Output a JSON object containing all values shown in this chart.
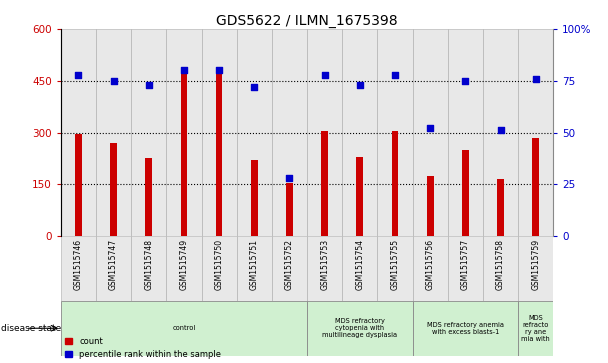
{
  "title": "GDS5622 / ILMN_1675398",
  "samples": [
    "GSM1515746",
    "GSM1515747",
    "GSM1515748",
    "GSM1515749",
    "GSM1515750",
    "GSM1515751",
    "GSM1515752",
    "GSM1515753",
    "GSM1515754",
    "GSM1515755",
    "GSM1515756",
    "GSM1515757",
    "GSM1515758",
    "GSM1515759"
  ],
  "counts": [
    295,
    270,
    225,
    475,
    490,
    220,
    155,
    305,
    230,
    305,
    175,
    250,
    165,
    285
  ],
  "percentiles": [
    78,
    75,
    73,
    80,
    80,
    72,
    28,
    78,
    73,
    78,
    52,
    75,
    51,
    76
  ],
  "left_ylim": [
    0,
    600
  ],
  "right_ylim": [
    0,
    100
  ],
  "left_yticks": [
    0,
    150,
    300,
    450,
    600
  ],
  "right_yticks": [
    0,
    25,
    50,
    75,
    100
  ],
  "bar_color": "#cc0000",
  "dot_color": "#0000cc",
  "bg_color": "#ffffff",
  "cell_bg": "#e8e8e8",
  "disease_groups": [
    {
      "label": "control",
      "start": 0,
      "end": 7,
      "color": "#d0f0d0"
    },
    {
      "label": "MDS refractory\ncytopenia with\nmultilineage dysplasia",
      "start": 7,
      "end": 10,
      "color": "#d0f0d0"
    },
    {
      "label": "MDS refractory anemia\nwith excess blasts-1",
      "start": 10,
      "end": 13,
      "color": "#d0f0d0"
    },
    {
      "label": "MDS\nrefracto\nry ane\nmia with",
      "start": 13,
      "end": 14,
      "color": "#d0f0d0"
    }
  ],
  "title_fontsize": 10,
  "tick_label_color_left": "#cc0000",
  "tick_label_color_right": "#0000cc"
}
